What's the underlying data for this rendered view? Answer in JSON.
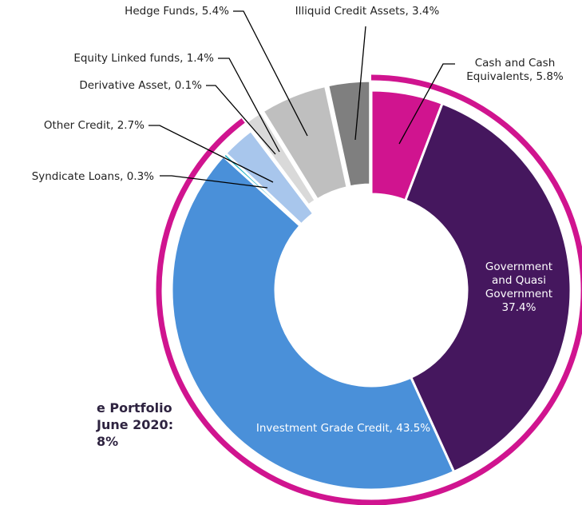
{
  "chart_data": {
    "type": "donut",
    "title_lines": [
      "e Portfolio",
      "June 2020:",
      "8%"
    ],
    "labels": [
      "Cash and Cash Equivalents, 5.8%",
      "Government and Quasi Government 37.4%",
      "Investment Grade Credit, 43.5%",
      "Syndicate Loans, 0.3%",
      "Other Credit, 2.7%",
      "Derivative Asset, 0.1%",
      "Equity Linked funds, 1.4%",
      "Hedge Funds, 5.4%",
      "Illiquid Credit Assets, 3.4%"
    ],
    "values": [
      5.8,
      37.4,
      43.5,
      0.3,
      2.7,
      0.1,
      1.4,
      5.4,
      3.4
    ],
    "colors": [
      "#d0148f",
      "#45175e",
      "#4a90d9",
      "#1fb3c6",
      "#a8c6ec",
      "#e8e8e8",
      "#d9d9d9",
      "#bfbfbf",
      "#7f7f7f"
    ],
    "exploded": [
      false,
      false,
      false,
      false,
      false,
      true,
      true,
      true,
      true
    ],
    "ring_color": "#d0148f"
  }
}
